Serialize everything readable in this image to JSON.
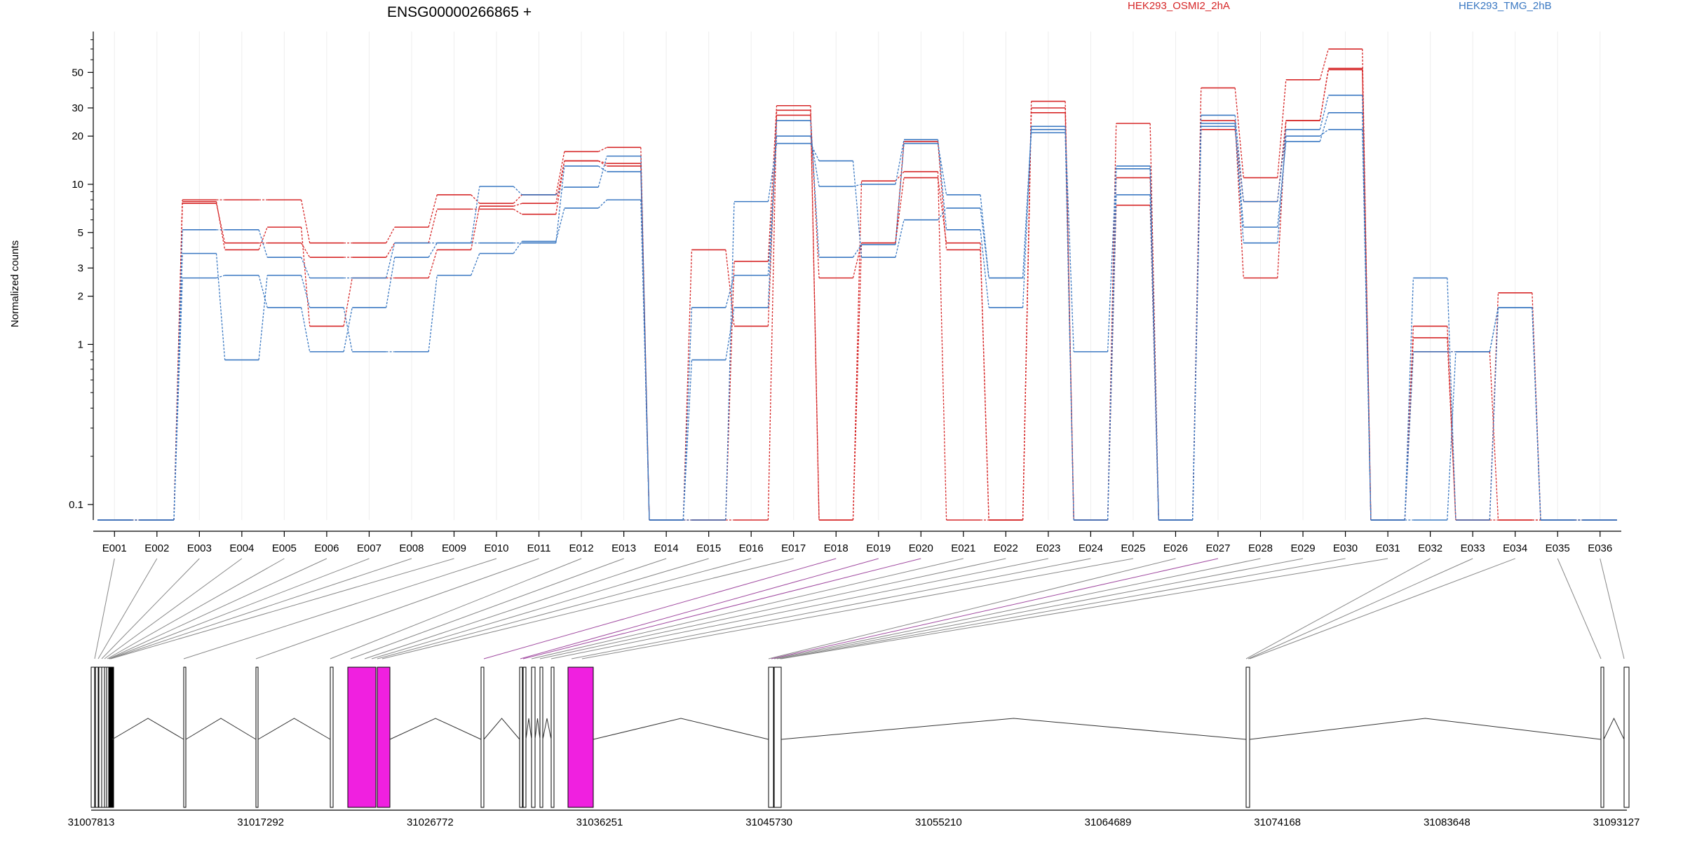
{
  "chart_data": {
    "type": "line",
    "title": "ENSG00000266865 +",
    "ylabel": "Normalized counts",
    "y_scale": "log",
    "ylim": [
      0.08,
      90
    ],
    "y_ticks": [
      "0.1",
      "1",
      "2",
      "3",
      "5",
      "10",
      "20",
      "30",
      "50"
    ],
    "y_tick_values": [
      0.1,
      1,
      2,
      3,
      5,
      10,
      20,
      30,
      50
    ],
    "grid": "vertical",
    "legend_placement": "top",
    "categories": [
      "E001",
      "E002",
      "E003",
      "E004",
      "E005",
      "E006",
      "E007",
      "E008",
      "E009",
      "E010",
      "E011",
      "E012",
      "E013",
      "E014",
      "E015",
      "E016",
      "E017",
      "E018",
      "E019",
      "E020",
      "E021",
      "E022",
      "E023",
      "E024",
      "E025",
      "E026",
      "E027",
      "E028",
      "E029",
      "E030",
      "E031",
      "E032",
      "E033",
      "E034",
      "E035",
      "E036"
    ],
    "legend": [
      {
        "name": "HEK293_OSMI2_2hA",
        "color": "#d62728"
      },
      {
        "name": "HEK293_TMG_2hB",
        "color": "#3a78c2"
      }
    ],
    "series": [
      {
        "group": "HEK293_OSMI2_2hA",
        "color": "#d62728",
        "values": [
          0.08,
          0.08,
          7.6,
          4.3,
          4.3,
          3.5,
          3.5,
          4.3,
          7.0,
          7.0,
          6.5,
          14,
          13,
          0.08,
          3.9,
          1.3,
          27,
          2.6,
          4.3,
          18.5,
          3.9,
          0.08,
          28,
          0.08,
          7.4,
          0.08,
          22,
          7.8,
          25,
          52,
          0.08,
          0.9,
          0.9,
          0.08,
          0.08,
          0.08
        ]
      },
      {
        "group": "HEK293_OSMI2_2hA",
        "color": "#d62728",
        "values": [
          0.08,
          0.08,
          8.0,
          8.0,
          8.0,
          4.3,
          4.3,
          5.4,
          8.6,
          7.6,
          8.6,
          16,
          17,
          0.08,
          0.08,
          3.3,
          31,
          0.08,
          10.5,
          12,
          0.08,
          0.08,
          33,
          0.08,
          24,
          0.08,
          40,
          11,
          45,
          70,
          0.08,
          1.3,
          0.08,
          0.08,
          0.08,
          0.08
        ]
      },
      {
        "group": "HEK293_OSMI2_2hA",
        "color": "#d62728",
        "values": [
          0.08,
          0.08,
          7.8,
          3.9,
          5.4,
          1.3,
          2.6,
          2.6,
          3.9,
          7.3,
          7.6,
          14,
          13.5,
          0.08,
          0.08,
          0.08,
          29,
          0.08,
          4.3,
          11,
          4.3,
          0.08,
          30,
          0.08,
          11,
          0.08,
          25,
          2.6,
          25,
          53,
          0.08,
          1.1,
          0.08,
          2.1,
          0.08,
          0.08
        ]
      },
      {
        "group": "HEK293_TMG_2hB",
        "color": "#3a78c2",
        "values": [
          0.08,
          0.08,
          5.2,
          5.2,
          3.5,
          2.6,
          2.6,
          4.3,
          4.3,
          9.7,
          8.6,
          9.6,
          15,
          0.08,
          1.7,
          2.7,
          20,
          9.7,
          10,
          19,
          5.2,
          1.7,
          23,
          0.9,
          13,
          0.08,
          27,
          7.8,
          22,
          36,
          0.08,
          2.6,
          0.08,
          1.7,
          0.08,
          0.08
        ]
      },
      {
        "group": "HEK293_TMG_2hB",
        "color": "#3a78c2",
        "values": [
          0.08,
          0.08,
          3.7,
          0.8,
          2.7,
          1.7,
          0.9,
          0.9,
          2.7,
          3.7,
          4.4,
          7.1,
          8.0,
          0.08,
          0.08,
          7.8,
          18,
          14,
          3.5,
          6.0,
          7.1,
          2.6,
          22,
          0.08,
          12.5,
          0.08,
          23,
          5.4,
          18.5,
          28,
          0.08,
          0.9,
          0.9,
          1.7,
          0.08,
          0.08
        ]
      },
      {
        "group": "HEK293_TMG_2hB",
        "color": "#3a78c2",
        "values": [
          0.08,
          0.08,
          2.6,
          2.7,
          1.7,
          0.9,
          1.7,
          3.5,
          4.3,
          4.3,
          4.3,
          13,
          12,
          0.08,
          0.8,
          1.7,
          25,
          3.5,
          4.2,
          18,
          8.6,
          2.6,
          21,
          0.08,
          8.6,
          0.08,
          24,
          4.3,
          20,
          22,
          0.08,
          0.08,
          0.9,
          1.7,
          0.08,
          0.08
        ]
      }
    ],
    "genome_track": {
      "coordinate_labels": [
        "31007813",
        "31017292",
        "31026772",
        "31036251",
        "31045730",
        "31055210",
        "31064689",
        "31074168",
        "31083648",
        "31093127"
      ],
      "highlighted_exons": [
        "E018",
        "E019",
        "E020",
        "E027"
      ],
      "highlight_color": "#f020e0"
    }
  }
}
